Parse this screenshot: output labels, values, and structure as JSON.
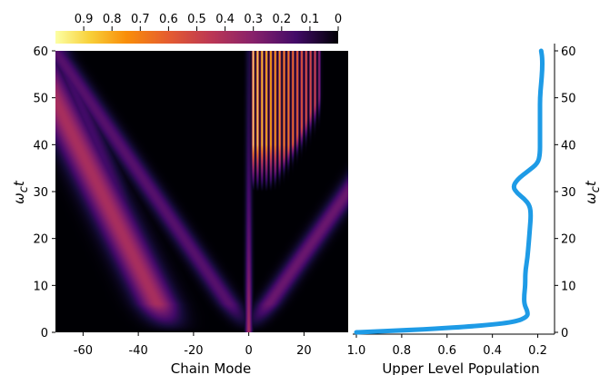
{
  "chart_data": [
    {
      "type": "heatmap",
      "xlabel": "Chain Mode",
      "ylabel": "ω_c t",
      "xticks": [
        -60,
        -40,
        -20,
        0,
        20
      ],
      "yticks": [
        0,
        10,
        20,
        30,
        40,
        50,
        60
      ],
      "xlim": [
        -70,
        36
      ],
      "ylim": [
        0,
        60
      ],
      "colormap": "inferno",
      "colorbar": {
        "ticks": [
          0.9,
          0.8,
          0.7,
          0.6,
          0.5,
          0.4,
          0.3,
          0.2,
          0.1,
          0
        ],
        "range": [
          1.0,
          0
        ],
        "placement": "top"
      },
      "features": [
        {
          "name": "upper-left band",
          "x_at_t0": -28,
          "slope_per_t": -0.85,
          "width": 5,
          "peak": 0.45
        },
        {
          "name": "left light-cone edge",
          "x_at_t0": 0,
          "slope_per_t": -1.17,
          "width": 3,
          "peak": 0.25
        },
        {
          "name": "inner left cone",
          "x_at_t0": -27,
          "slope_per_t": -0.7,
          "width": 3,
          "peak": 0.2
        },
        {
          "name": "central column",
          "x_at_t0": 0,
          "slope_per_t": 0,
          "width": 0.8,
          "peak": 0.45
        },
        {
          "name": "right stripe fan",
          "x_range": [
            0,
            27
          ],
          "t_range": [
            30,
            60
          ],
          "stripe_spacing": 1.6,
          "peak": 1.0
        },
        {
          "name": "right light-cone edge",
          "x_at_t0": 0,
          "slope_per_t": 1.2,
          "width": 3,
          "peak": 0.3
        }
      ]
    },
    {
      "type": "line",
      "xlabel": "Upper Level Population",
      "ylabel": "ω_c t",
      "xticks": [
        1.0,
        0.8,
        0.6,
        0.4,
        0.2
      ],
      "yticks": [
        0,
        10,
        20,
        30,
        40,
        50,
        60
      ],
      "xlim": [
        1.0,
        0.15
      ],
      "x_inverted": true,
      "ylim": [
        0,
        60
      ],
      "line_color": "#1e9be6",
      "series": [
        {
          "points": [
            [
              1.0,
              0
            ],
            [
              0.7,
              0.6
            ],
            [
              0.45,
              1.4
            ],
            [
              0.3,
              2.2
            ],
            [
              0.245,
              3.3
            ],
            [
              0.245,
              4.5
            ],
            [
              0.26,
              6
            ],
            [
              0.26,
              8
            ],
            [
              0.255,
              10
            ],
            [
              0.255,
              13
            ],
            [
              0.245,
              16
            ],
            [
              0.24,
              19
            ],
            [
              0.235,
              22
            ],
            [
              0.23,
              25
            ],
            [
              0.235,
              27
            ],
            [
              0.26,
              28.5
            ],
            [
              0.29,
              29.6
            ],
            [
              0.31,
              31
            ],
            [
              0.29,
              32.6
            ],
            [
              0.24,
              34.5
            ],
            [
              0.2,
              36
            ],
            [
              0.19,
              38
            ],
            [
              0.19,
              41
            ],
            [
              0.19,
              44
            ],
            [
              0.19,
              47
            ],
            [
              0.19,
              50
            ],
            [
              0.185,
              53
            ],
            [
              0.18,
              56
            ],
            [
              0.18,
              58.5
            ],
            [
              0.185,
              60
            ]
          ]
        }
      ]
    }
  ]
}
